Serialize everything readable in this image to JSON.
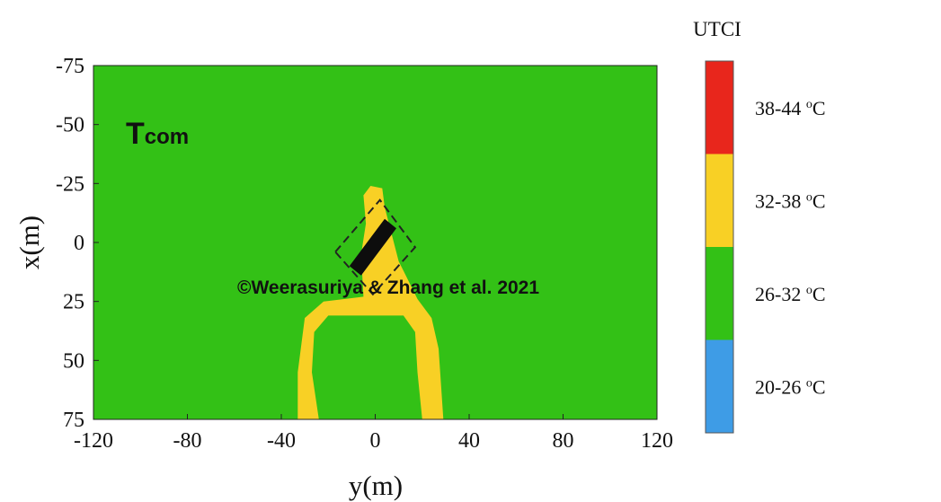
{
  "chart_data": {
    "type": "heatmap",
    "title": "",
    "panel_label": {
      "main": "T",
      "subscript": "com"
    },
    "xlabel": "y(m)",
    "ylabel": "x(m)",
    "xlim": [
      -120,
      120
    ],
    "ylim": [
      75,
      -75
    ],
    "xticks": [
      -120,
      -80,
      -40,
      0,
      40,
      80,
      120
    ],
    "yticks": [
      -75,
      -50,
      -25,
      0,
      25,
      50,
      75
    ],
    "background_class": "26-32 oC",
    "colorbar": {
      "title": "UTCI",
      "unit_prefix": "o",
      "unit": "C",
      "classes": [
        {
          "label": "38-44",
          "color": "#e8261c"
        },
        {
          "label": "32-38",
          "color": "#f8d025"
        },
        {
          "label": "26-32",
          "color": "#33c116"
        },
        {
          "label": "20-26",
          "color": "#3e9ce6"
        }
      ]
    },
    "hot_zone": {
      "class": "32-38",
      "outline_xy": [
        [
          -33,
          75
        ],
        [
          -33,
          55
        ],
        [
          -30,
          32
        ],
        [
          -22,
          25
        ],
        [
          -5,
          23
        ],
        [
          -6,
          5
        ],
        [
          -4,
          -8
        ],
        [
          -5,
          -20
        ],
        [
          -2,
          -24
        ],
        [
          3,
          -23
        ],
        [
          4,
          -15
        ],
        [
          10,
          8
        ],
        [
          12,
          12
        ],
        [
          18,
          24
        ],
        [
          24,
          32
        ],
        [
          27,
          45
        ],
        [
          29,
          75
        ],
        [
          20,
          75
        ],
        [
          18,
          55
        ],
        [
          17,
          38
        ],
        [
          12,
          31
        ],
        [
          -20,
          31
        ],
        [
          -26,
          38
        ],
        [
          -27,
          55
        ],
        [
          -24,
          75
        ]
      ]
    },
    "building_footprint": {
      "solid": [
        [
          -11,
          10
        ],
        [
          -6,
          14
        ],
        [
          9,
          -6
        ],
        [
          4,
          -10
        ]
      ],
      "dashed": [
        [
          -17,
          4
        ],
        [
          2,
          -18
        ],
        [
          17,
          2
        ],
        [
          -1,
          22
        ]
      ]
    }
  },
  "watermark": "©Weerasuriya & Zhang et al. 2021"
}
